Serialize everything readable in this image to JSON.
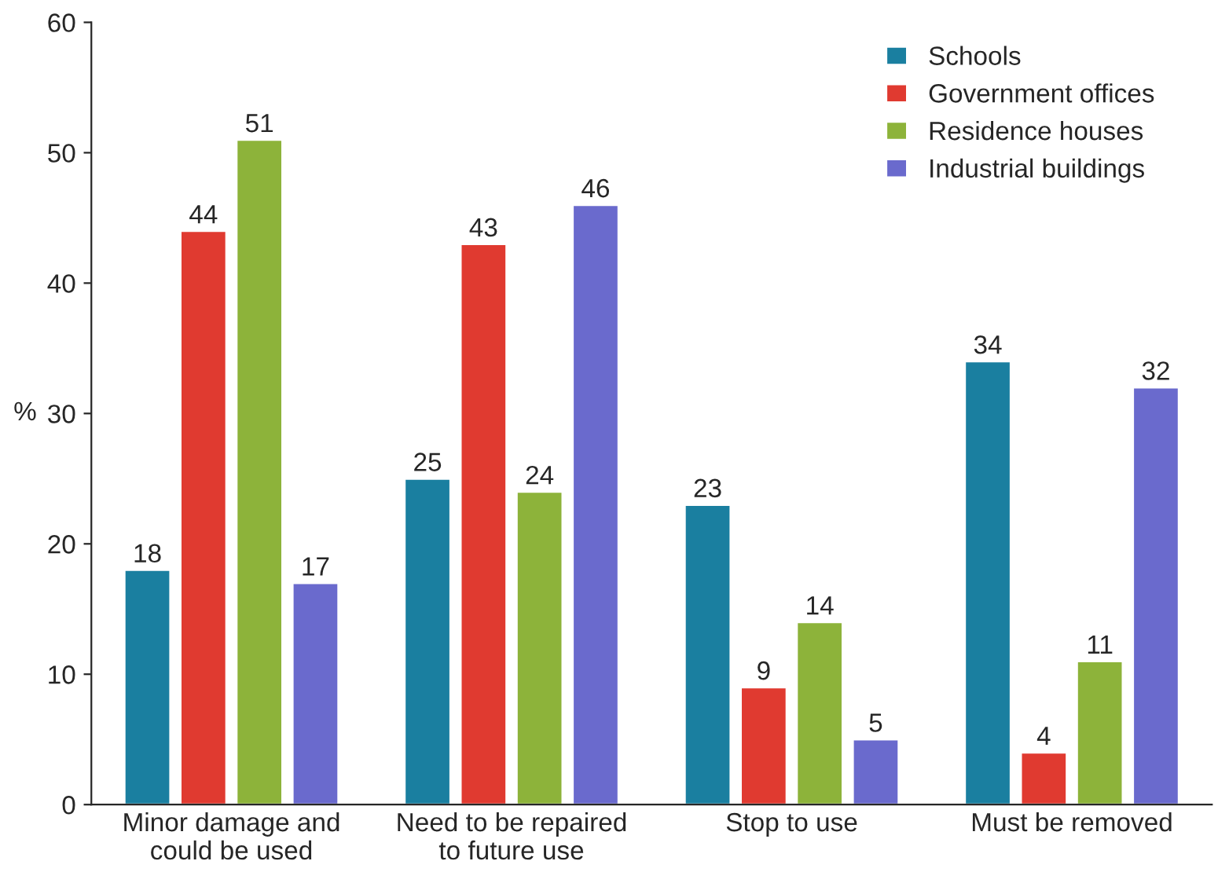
{
  "chart_data": {
    "type": "bar",
    "ylabel": "%",
    "categories": [
      "Minor damage and\ncould be used",
      "Need to be repaired\nto future use",
      "Stop to use",
      "Must be removed"
    ],
    "series": [
      {
        "name": "Schools",
        "color": "#1a7fa0",
        "values": [
          18,
          25,
          23,
          34
        ]
      },
      {
        "name": "Government offices",
        "color": "#e03a30",
        "values": [
          44,
          43,
          9,
          4
        ]
      },
      {
        "name": "Residence houses",
        "color": "#8db33a",
        "values": [
          51,
          24,
          14,
          11
        ]
      },
      {
        "name": "Industrial buildings",
        "color": "#6a6acd",
        "values": [
          17,
          46,
          5,
          32
        ]
      }
    ],
    "ylim": [
      0,
      60
    ],
    "yticks": [
      0,
      10,
      20,
      30,
      40,
      50,
      60
    ],
    "grid": false,
    "legend": "top right",
    "data_labels": true
  }
}
